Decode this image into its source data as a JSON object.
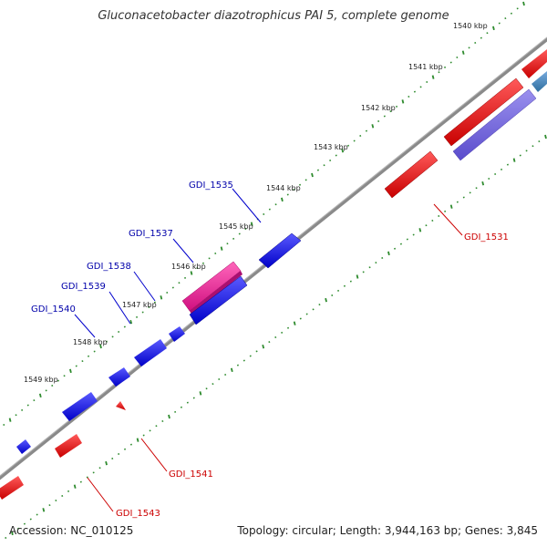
{
  "title": "Gluconacetobacter diazotrophicus PAI 5, complete genome",
  "footer": {
    "accession": "Accession: NC_010125",
    "topology": "Topology: circular; Length: 3,944,163 bp; Genes: 3,845"
  },
  "colors": {
    "backbone": "#8a8a8a",
    "tick": "#2e8b2e",
    "forward_gene": "#0000ee",
    "reverse_gene": "#ee0000",
    "pink_gene": "#ee2299",
    "purple_gene": "#7766dd",
    "steel_gene": "#4488bb",
    "forward_label": "#0000aa",
    "reverse_label": "#cc0000"
  },
  "kbp_ticks": [
    "1540 kbp",
    "1541 kbp",
    "1542 kbp",
    "1543 kbp",
    "1544 kbp",
    "1545 kbp",
    "1546 kbp",
    "1547 kbp",
    "1548 kbp",
    "1549 kbp"
  ],
  "gene_labels_forward": [
    "GDI_1535",
    "GDI_1537",
    "GDI_1538",
    "GDI_1539",
    "GDI_1540"
  ],
  "gene_labels_reverse": [
    "GDI_1531",
    "GDI_1541",
    "GDI_1543"
  ]
}
